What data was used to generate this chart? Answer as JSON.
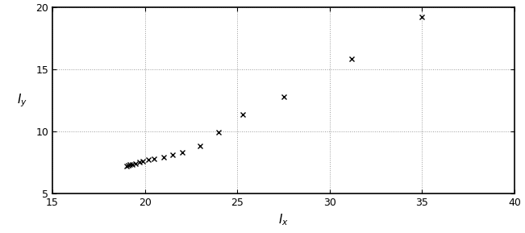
{
  "x": [
    19.0,
    19.1,
    19.2,
    19.3,
    19.5,
    19.7,
    19.9,
    20.2,
    20.5,
    21.0,
    21.5,
    22.0,
    23.0,
    24.0,
    25.3,
    27.5,
    31.2,
    35.0
  ],
  "y": [
    7.2,
    7.25,
    7.3,
    7.35,
    7.4,
    7.5,
    7.6,
    7.7,
    7.8,
    7.9,
    8.1,
    8.3,
    8.85,
    9.95,
    11.35,
    12.8,
    15.85,
    19.2
  ],
  "marker": "x",
  "markersize": 4,
  "color": "black",
  "linewidth": 0,
  "markeredgewidth": 1.0,
  "xlabel": "$I_x$",
  "ylabel": "$I_y$",
  "xlim": [
    15,
    40
  ],
  "ylim": [
    5,
    20
  ],
  "xticks": [
    15,
    20,
    25,
    30,
    35,
    40
  ],
  "yticks": [
    5,
    10,
    15,
    20
  ],
  "grid": true,
  "grid_linestyle": ":",
  "grid_color": "#999999",
  "grid_linewidth": 0.7,
  "bg_color": "white",
  "xlabel_fontsize": 11,
  "ylabel_fontsize": 11,
  "tick_fontsize": 9,
  "spine_linewidth": 1.2
}
